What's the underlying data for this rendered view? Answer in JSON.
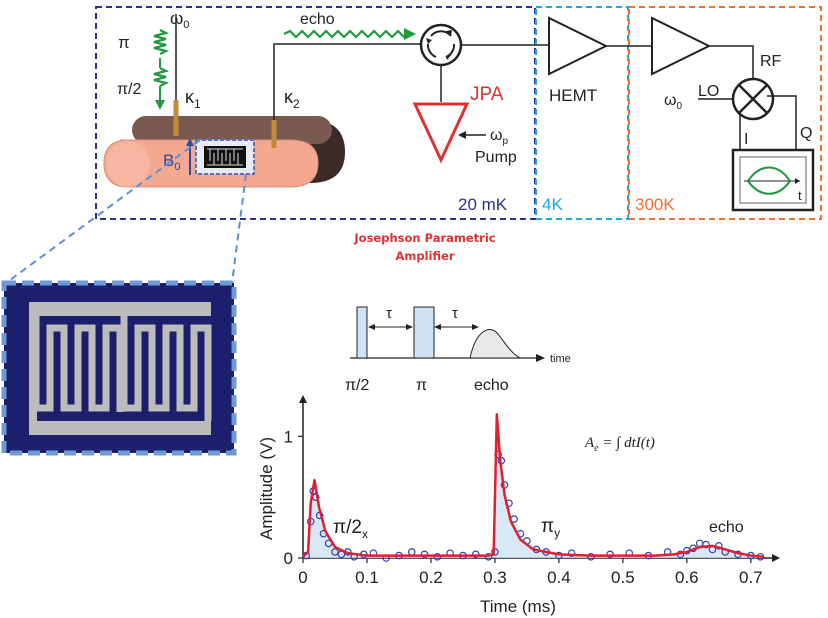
{
  "stages": {
    "mk20": "20 mK",
    "k4": "4K",
    "k300": "300K"
  },
  "labels": {
    "omega0_top": "ω",
    "omega0_top_sub": "0",
    "pi": "π",
    "pi_half": "π/2",
    "kappa1": "κ",
    "kappa1_sub": "1",
    "kappa2": "κ",
    "kappa2_sub": "2",
    "b0": "B",
    "b0_sub": "0",
    "echo": "echo",
    "jpa": "JPA",
    "pump": "Pump",
    "omega_p": "ω",
    "omega_p_sub": "p",
    "hemt": "HEMT",
    "rf": "RF",
    "lo": "LO",
    "omega0_lo": "ω",
    "omega0_lo_sub": "0",
    "i": "I",
    "q": "Q",
    "t": "t"
  },
  "jpa_note": {
    "line1": "Josephson Parametric",
    "line2": "Amplifier"
  },
  "sequence": {
    "tau1": "τ",
    "tau2": "τ",
    "time": "time",
    "pi_half": "π/2",
    "pi": "π",
    "echo": "echo"
  },
  "formula": {
    "lhs": "A",
    "lhs_sub": "e",
    "rhs": " = ∫ dtI(t)"
  },
  "plot_labels": {
    "pi2x": "π/2",
    "pi2x_sub": "x",
    "piy": "π",
    "piy_sub": "y",
    "echo": "echo"
  },
  "colors": {
    "stage_20mk": "#2b2f8f",
    "stage_4k": "#1fa8e0",
    "stage_300k": "#f07030",
    "jpa": "#e03030",
    "signal": "#1f9a3f",
    "fit_line": "#e02030",
    "data_points": "#3040c0",
    "fill": "#cfe2f3",
    "cavity": "#f4a890",
    "resonator_bg": "#1c1f6b"
  },
  "chart_data": {
    "type": "scatter",
    "xlabel": "Time (ms)",
    "ylabel": "Amplitude (V)",
    "xlim": [
      0,
      0.73
    ],
    "ylim": [
      0,
      1.2
    ],
    "xticks": [
      "0",
      "0.1",
      "0.2",
      "0.3",
      "0.4",
      "0.5",
      "0.6",
      "0.7"
    ],
    "yticks": [
      "0",
      "1"
    ],
    "series": [
      {
        "style": "line",
        "x": [
          0.0,
          0.008,
          0.012,
          0.018,
          0.025,
          0.035,
          0.05,
          0.07,
          0.1,
          0.15,
          0.2,
          0.25,
          0.29,
          0.298,
          0.303,
          0.308,
          0.315,
          0.325,
          0.34,
          0.36,
          0.4,
          0.45,
          0.5,
          0.55,
          0.58,
          0.6,
          0.62,
          0.64,
          0.66,
          0.68,
          0.7,
          0.72
        ],
        "y": [
          0.01,
          0.05,
          0.45,
          0.64,
          0.42,
          0.22,
          0.09,
          0.04,
          0.02,
          0.02,
          0.02,
          0.02,
          0.02,
          0.03,
          1.18,
          0.82,
          0.52,
          0.3,
          0.15,
          0.07,
          0.03,
          0.02,
          0.02,
          0.02,
          0.03,
          0.05,
          0.09,
          0.1,
          0.07,
          0.04,
          0.02,
          0.01
        ]
      },
      {
        "style": "points",
        "x": [
          0.005,
          0.012,
          0.016,
          0.02,
          0.026,
          0.032,
          0.04,
          0.05,
          0.06,
          0.07,
          0.08,
          0.095,
          0.11,
          0.13,
          0.15,
          0.17,
          0.19,
          0.21,
          0.23,
          0.25,
          0.27,
          0.29,
          0.3,
          0.305,
          0.31,
          0.315,
          0.322,
          0.33,
          0.34,
          0.35,
          0.365,
          0.38,
          0.4,
          0.42,
          0.45,
          0.48,
          0.51,
          0.54,
          0.57,
          0.59,
          0.6,
          0.61,
          0.62,
          0.63,
          0.64,
          0.65,
          0.66,
          0.68,
          0.7,
          0.715
        ],
        "y": [
          0.02,
          0.3,
          0.55,
          0.5,
          0.35,
          0.2,
          0.12,
          0.05,
          0.03,
          0.05,
          0.01,
          0.03,
          0.04,
          0.0,
          0.02,
          0.05,
          0.03,
          0.01,
          0.04,
          0.02,
          0.03,
          0.01,
          0.05,
          0.85,
          0.8,
          0.6,
          0.45,
          0.32,
          0.2,
          0.14,
          0.07,
          0.05,
          0.02,
          0.04,
          0.01,
          0.03,
          0.04,
          0.02,
          0.05,
          0.03,
          0.06,
          0.08,
          0.12,
          0.11,
          0.07,
          0.1,
          0.05,
          0.03,
          0.02,
          0.01
        ]
      }
    ]
  }
}
